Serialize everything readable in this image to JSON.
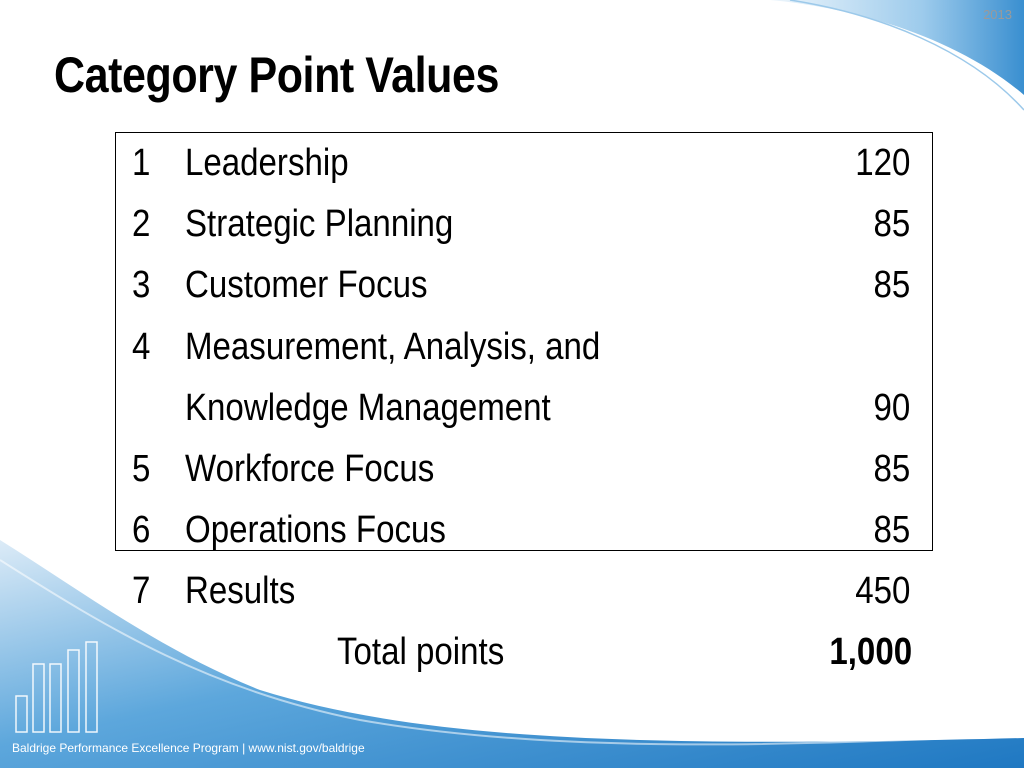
{
  "header": {
    "year": "2013",
    "title": "Category Point Values"
  },
  "categories": [
    {
      "num": "1",
      "name": "Leadership",
      "points": "120"
    },
    {
      "num": "2",
      "name": "Strategic Planning",
      "points": "85"
    },
    {
      "num": "3",
      "name": "Customer Focus",
      "points": "85"
    },
    {
      "num": "4",
      "name": "Measurement, Analysis, and",
      "points": ""
    },
    {
      "num": "",
      "name": "Knowledge Management",
      "points": "90"
    },
    {
      "num": "5",
      "name": "Workforce Focus",
      "points": "85"
    },
    {
      "num": "6",
      "name": "Operations Focus",
      "points": "85"
    },
    {
      "num": "7",
      "name": "Results",
      "points": "450"
    }
  ],
  "total": {
    "label": "Total points",
    "value": "1,000"
  },
  "footer": {
    "text": "Baldrige Performance Excellence Program | www.nist.gov/baldrige"
  },
  "colors": {
    "accent": "#3a8fd0",
    "light_blue": "#cfe6f6"
  }
}
